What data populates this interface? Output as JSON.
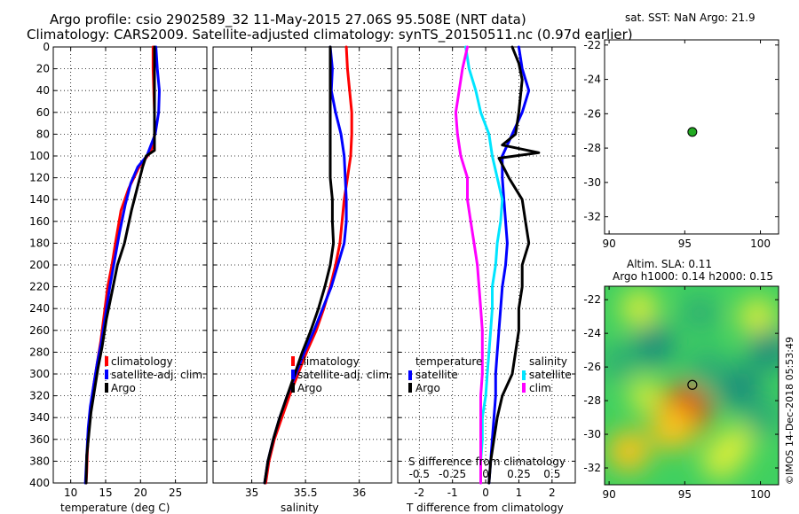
{
  "header": {
    "line1": "Argo profile: csio 2902589_32 11-May-2015 27.06S 95.508E (NRT data)",
    "line2": "Climatology: CARS2009. Satellite-adjusted climatology: synTS_20150511.nc (0.97d earlier)"
  },
  "colors": {
    "climatology": "#ff0000",
    "satellite": "#0000ff",
    "argo": "#000000",
    "sat_salinity": "#00e5ff",
    "clim_salinity": "#ff00ff",
    "argo_marker": "#22aa22"
  },
  "chart_data": [
    {
      "id": "temperature",
      "type": "line",
      "xlabel": "temperature (deg C)",
      "ylabel": "",
      "xlim": [
        7.5,
        29.5
      ],
      "ylim": [
        400,
        0
      ],
      "xticks": [
        10,
        15,
        20,
        25
      ],
      "xtick_labels": [
        "10",
        "15",
        "20",
        "25"
      ],
      "yticks": [
        0,
        20,
        40,
        60,
        80,
        100,
        120,
        140,
        160,
        180,
        200,
        220,
        240,
        260,
        280,
        300,
        320,
        340,
        360,
        380,
        400
      ],
      "ytick_labels": [
        "0",
        "20",
        "40",
        "60",
        "80",
        "100",
        "120",
        "140",
        "160",
        "180",
        "200",
        "220",
        "240",
        "260",
        "280",
        "300",
        "320",
        "340",
        "360",
        "380",
        "400"
      ],
      "legend": [
        "climatology",
        "satellite-adj. clim.",
        "Argo"
      ],
      "series": [
        {
          "name": "climatology",
          "color": "#ff0000",
          "width": 3,
          "x": [
            21.8,
            21.8,
            21.9,
            22.0,
            22.0,
            21.9,
            21.0,
            19.8,
            18.3,
            17.2,
            16.4,
            15.9,
            15.3,
            14.8,
            14.3,
            13.8,
            13.3,
            12.9,
            12.6,
            12.4,
            12.3,
            12.2
          ],
          "y": [
            0,
            20,
            40,
            60,
            80,
            90,
            100,
            110,
            130,
            150,
            180,
            200,
            220,
            245,
            270,
            290,
            310,
            330,
            350,
            370,
            390,
            400
          ]
        },
        {
          "name": "satellite-adj. clim.",
          "color": "#0000ff",
          "width": 3,
          "x": [
            22.2,
            22.4,
            22.7,
            22.6,
            22.1,
            21.5,
            20.9,
            19.6,
            18.6,
            17.8,
            17.0,
            16.3,
            15.6,
            15.0,
            14.4,
            13.8,
            13.3,
            12.8,
            12.5,
            12.3,
            12.1
          ],
          "y": [
            0,
            20,
            40,
            60,
            80,
            90,
            100,
            110,
            125,
            145,
            170,
            195,
            220,
            245,
            270,
            290,
            310,
            330,
            350,
            375,
            400
          ]
        },
        {
          "name": "Argo",
          "color": "#000000",
          "width": 3,
          "x": [
            22.0,
            22.0,
            22.0,
            22.0,
            22.0,
            22.0,
            20.8,
            20.3,
            19.5,
            18.7,
            17.7,
            16.7,
            15.9,
            15.1,
            14.5,
            13.9,
            13.4,
            12.9,
            12.6,
            12.3,
            12.2
          ],
          "y": [
            0,
            20,
            40,
            60,
            80,
            95,
            100,
            110,
            130,
            150,
            180,
            200,
            225,
            250,
            275,
            295,
            315,
            335,
            355,
            375,
            400
          ]
        }
      ]
    },
    {
      "id": "salinity",
      "type": "line",
      "xlabel": "salinity",
      "ylabel": "",
      "xlim": [
        34.64,
        36.3
      ],
      "ylim": [
        400,
        0
      ],
      "xticks": [
        35,
        35.5,
        36
      ],
      "xtick_labels": [
        "35",
        "35.5",
        "36"
      ],
      "yticks": [
        0,
        20,
        40,
        60,
        80,
        100,
        120,
        140,
        160,
        180,
        200,
        220,
        240,
        260,
        280,
        300,
        320,
        340,
        360,
        380,
        400
      ],
      "legend": [
        "climatology",
        "satellite-adj. clim.",
        "Argo"
      ],
      "series": [
        {
          "name": "climatology",
          "color": "#ff0000",
          "width": 3,
          "x": [
            35.88,
            35.89,
            35.91,
            35.93,
            35.93,
            35.92,
            35.89,
            35.86,
            35.84,
            35.82,
            35.78,
            35.73,
            35.67,
            35.6,
            35.51,
            35.43,
            35.35,
            35.28,
            35.21,
            35.16,
            35.13
          ],
          "y": [
            0,
            20,
            40,
            60,
            80,
            100,
            120,
            140,
            160,
            180,
            200,
            220,
            240,
            260,
            280,
            300,
            320,
            340,
            360,
            380,
            400
          ]
        },
        {
          "name": "satellite-adj. clim.",
          "color": "#0000ff",
          "width": 3,
          "x": [
            35.73,
            35.75,
            35.74,
            35.78,
            35.83,
            35.86,
            35.87,
            35.88,
            35.88,
            35.86,
            35.8,
            35.74,
            35.66,
            35.58,
            35.49,
            35.41,
            35.33,
            35.26,
            35.2,
            35.15,
            35.12
          ],
          "y": [
            0,
            20,
            40,
            60,
            80,
            100,
            120,
            140,
            160,
            180,
            200,
            220,
            240,
            260,
            280,
            300,
            320,
            340,
            360,
            380,
            400
          ]
        },
        {
          "name": "Argo",
          "color": "#000000",
          "width": 3,
          "x": [
            35.73,
            35.73,
            35.73,
            35.73,
            35.73,
            35.73,
            35.73,
            35.75,
            35.75,
            35.76,
            35.73,
            35.68,
            35.62,
            35.55,
            35.47,
            35.4,
            35.33,
            35.26,
            35.2,
            35.15,
            35.12
          ],
          "y": [
            0,
            20,
            40,
            60,
            80,
            100,
            120,
            140,
            160,
            180,
            200,
            220,
            240,
            260,
            280,
            300,
            320,
            340,
            360,
            380,
            400
          ]
        }
      ]
    },
    {
      "id": "difference",
      "type": "line",
      "xlabel": "T difference from climatology",
      "top_xlabel": "S difference from climatology",
      "ylabel": "",
      "xlim": [
        -2.65,
        2.7
      ],
      "ylim": [
        400,
        0
      ],
      "xticks": [
        -2,
        -1,
        0,
        1,
        2
      ],
      "xtick_labels": [
        "-2",
        "-1",
        "0",
        "1",
        "2"
      ],
      "top_ticks": [
        -0.5,
        -0.25,
        0,
        0.25,
        0.5
      ],
      "top_tick_labels": [
        "-0.5",
        "-0.25",
        "0",
        "0.25",
        "0.5"
      ],
      "yticks": [
        0,
        20,
        40,
        60,
        80,
        100,
        120,
        140,
        160,
        180,
        200,
        220,
        240,
        260,
        280,
        300,
        320,
        340,
        360,
        380,
        400
      ],
      "legend_temperature_title": "temperature",
      "legend_salinity_title": "salinity",
      "legend_temperature": [
        "satellite",
        "Argo"
      ],
      "legend_salinity": [
        "satellite",
        "clim"
      ],
      "series": [
        {
          "name": "T satellite",
          "color": "#0000ff",
          "width": 3,
          "x": [
            1.0,
            1.1,
            1.3,
            1.1,
            0.8,
            0.5,
            0.5,
            0.55,
            0.6,
            0.65,
            0.6,
            0.5,
            0.45,
            0.4,
            0.35,
            0.3,
            0.3,
            0.25,
            0.2,
            0.15,
            0.1
          ],
          "y": [
            0,
            20,
            40,
            60,
            80,
            100,
            120,
            140,
            160,
            180,
            200,
            220,
            240,
            260,
            280,
            300,
            320,
            340,
            360,
            380,
            400
          ]
        },
        {
          "name": "T Argo",
          "color": "#000000",
          "width": 3,
          "x": [
            0.8,
            1.0,
            1.1,
            1.0,
            0.9,
            0.5,
            1.6,
            0.4,
            0.7,
            1.1,
            1.2,
            1.3,
            1.1,
            1.1,
            1.0,
            1.0,
            0.9,
            0.8,
            0.5,
            0.35,
            0.25,
            0.15,
            0.1
          ],
          "y": [
            0,
            15,
            30,
            60,
            80,
            90,
            97,
            102,
            120,
            140,
            160,
            180,
            200,
            220,
            240,
            260,
            280,
            300,
            320,
            340,
            360,
            380,
            400
          ]
        },
        {
          "name": "S satellite",
          "color": "#00e5ff",
          "width": 3,
          "x": [
            -0.6,
            -0.5,
            -0.3,
            -0.15,
            0.1,
            0.2,
            0.35,
            0.5,
            0.45,
            0.35,
            0.3,
            0.2,
            0.2,
            0.15,
            0.1,
            0.05,
            0.0,
            -0.1,
            -0.1,
            -0.15,
            -0.15
          ],
          "y": [
            0,
            20,
            40,
            60,
            80,
            100,
            120,
            140,
            160,
            180,
            200,
            220,
            240,
            260,
            280,
            300,
            320,
            340,
            360,
            380,
            400
          ]
        },
        {
          "name": "S clim",
          "color": "#ff00ff",
          "width": 3,
          "x": [
            -0.55,
            -0.7,
            -0.8,
            -0.9,
            -0.85,
            -0.75,
            -0.55,
            -0.55,
            -0.45,
            -0.35,
            -0.25,
            -0.2,
            -0.15,
            -0.1,
            -0.1,
            -0.1,
            -0.15,
            -0.15,
            -0.15,
            -0.15,
            -0.15
          ],
          "y": [
            0,
            20,
            40,
            60,
            80,
            100,
            120,
            140,
            160,
            180,
            200,
            220,
            240,
            260,
            280,
            300,
            320,
            340,
            360,
            380,
            400
          ]
        }
      ]
    },
    {
      "id": "sst_map",
      "type": "scatter",
      "title": "sat. SST: NaN Argo: 21.9",
      "xlim": [
        89.7,
        101.2
      ],
      "ylim": [
        -33,
        -21.7
      ],
      "xticks": [
        90,
        95,
        100
      ],
      "xtick_labels": [
        "90",
        "95",
        "100"
      ],
      "yticks": [
        -22,
        -24,
        -26,
        -28,
        -30,
        -32
      ],
      "ytick_labels": [
        "-22",
        "-24",
        "-26",
        "-28",
        "-30",
        "-32"
      ],
      "points": [
        {
          "x": 95.5,
          "y": -27.06
        }
      ]
    },
    {
      "id": "sla_map",
      "type": "heatmap",
      "title_line1": "Altim. SLA: 0.11",
      "title_line2": "Argo h1000: 0.14 h2000: 0.15",
      "xlim": [
        89.7,
        101.2
      ],
      "ylim": [
        -33,
        -21.2
      ],
      "xticks": [
        90,
        95,
        100
      ],
      "xtick_labels": [
        "90",
        "95",
        "100"
      ],
      "yticks": [
        -22,
        -24,
        -26,
        -28,
        -30,
        -32
      ],
      "ytick_labels": [
        "-22",
        "-24",
        "-26",
        "-28",
        "-30",
        "-32"
      ],
      "points": [
        {
          "x": 95.5,
          "y": -27.06
        }
      ],
      "anomalies": [
        {
          "x": 95.0,
          "y": -28.6,
          "level": 0.95
        },
        {
          "x": 94.2,
          "y": -29.6,
          "level": 0.7
        },
        {
          "x": 91.3,
          "y": -31.0,
          "level": 0.55
        },
        {
          "x": 97.4,
          "y": -31.5,
          "level": 0.45
        },
        {
          "x": 98.3,
          "y": -30.6,
          "level": 0.35
        },
        {
          "x": 99.8,
          "y": -23.0,
          "level": 0.4
        },
        {
          "x": 92.0,
          "y": -22.5,
          "level": 0.35
        },
        {
          "x": 93.0,
          "y": -24.7,
          "level": -0.55
        },
        {
          "x": 98.6,
          "y": -27.2,
          "level": -0.65
        },
        {
          "x": 96.5,
          "y": -26.1,
          "level": -0.5
        },
        {
          "x": 100.6,
          "y": -25.0,
          "level": -0.55
        },
        {
          "x": 100.2,
          "y": -28.9,
          "level": -0.45
        },
        {
          "x": 90.6,
          "y": -25.7,
          "level": -0.3
        },
        {
          "x": 96.0,
          "y": -22.8,
          "level": -0.3
        },
        {
          "x": 92.4,
          "y": -27.7,
          "level": 0.2
        }
      ]
    }
  ],
  "footer": {
    "credit": "©IMOS 14-Dec-2018 05:53:49"
  }
}
